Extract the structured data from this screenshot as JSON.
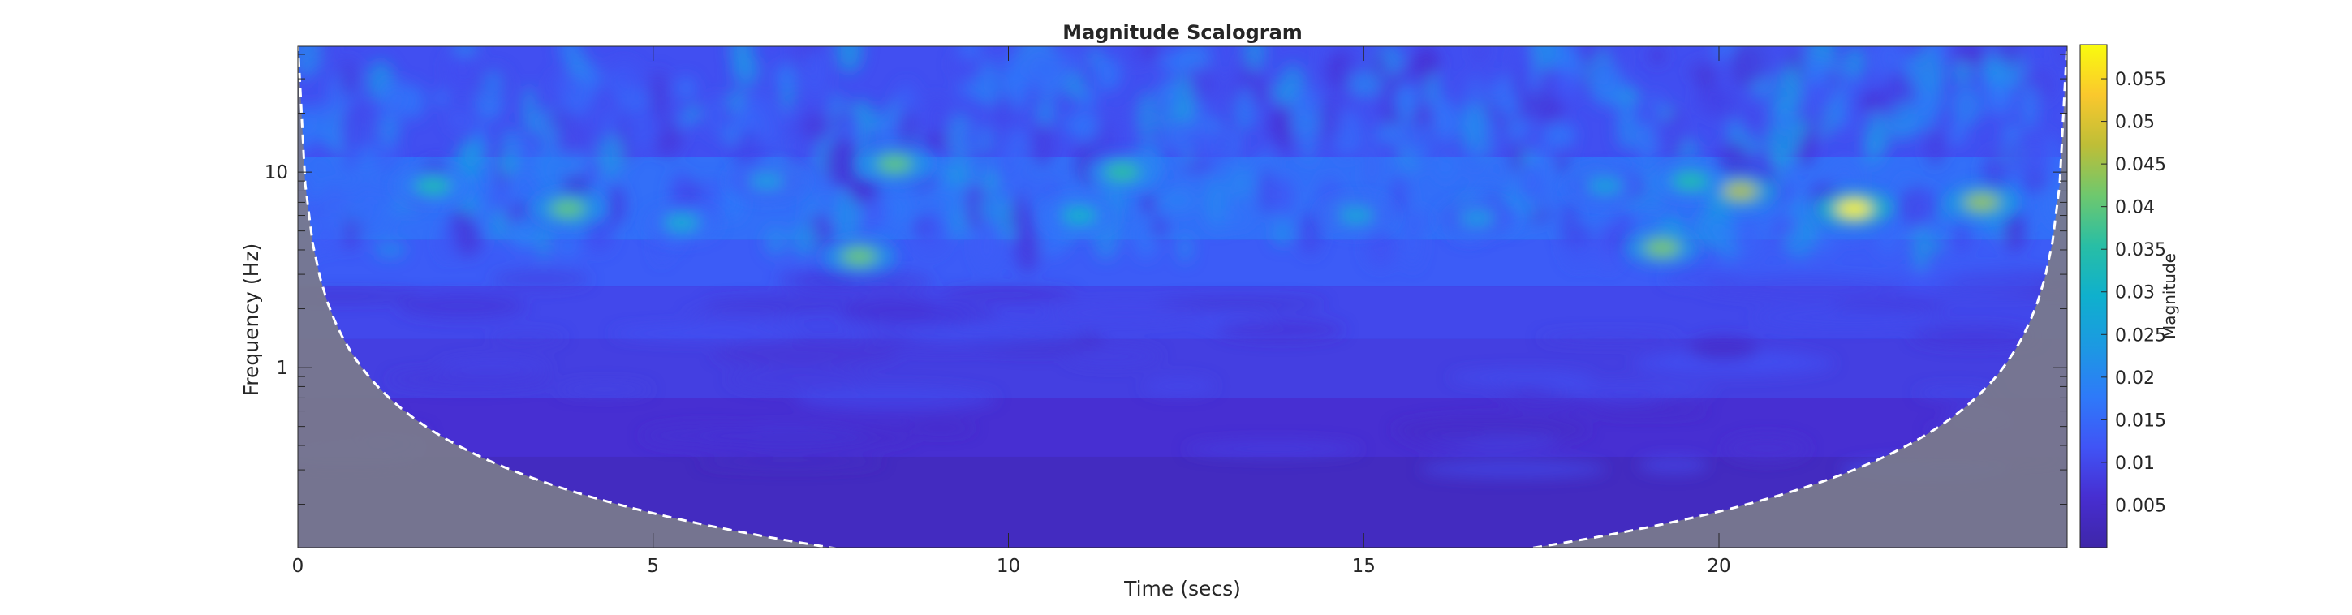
{
  "chart_data": {
    "type": "heatmap",
    "title": "Magnitude Scalogram",
    "xlabel": "Time (secs)",
    "ylabel": "Frequency (Hz)",
    "x_ticks": [
      0,
      5,
      10,
      15,
      20
    ],
    "x_tick_labels": [
      "0",
      "5",
      "10",
      "15",
      "20"
    ],
    "xlim": [
      0,
      24.9
    ],
    "y_scale": "log",
    "y_ticks": [
      1,
      10
    ],
    "y_tick_labels": [
      "1",
      "10"
    ],
    "ylim": [
      0.12,
      44
    ],
    "colorbar": {
      "label": "Magnitude",
      "colormap": "parula",
      "range": [
        0,
        0.059
      ],
      "ticks": [
        0.005,
        0.01,
        0.015,
        0.02,
        0.025,
        0.03,
        0.035,
        0.04,
        0.045,
        0.05,
        0.055
      ],
      "tick_labels": [
        "0.005",
        "0.01",
        "0.015",
        "0.02",
        "0.025",
        "0.03",
        "0.035",
        "0.04",
        "0.045",
        "0.05",
        "0.055"
      ]
    },
    "cone_of_influence": {
      "style": "white dashed line",
      "outside_shading": "gray"
    },
    "hotspots": [
      {
        "t": 21.9,
        "f": 6.5,
        "magnitude": 0.058
      },
      {
        "t": 20.3,
        "f": 8.0,
        "magnitude": 0.046
      },
      {
        "t": 23.7,
        "f": 7.0,
        "magnitude": 0.044
      },
      {
        "t": 19.2,
        "f": 4.1,
        "magnitude": 0.042
      },
      {
        "t": 7.9,
        "f": 3.7,
        "magnitude": 0.041
      },
      {
        "t": 3.8,
        "f": 6.5,
        "magnitude": 0.04
      },
      {
        "t": 8.4,
        "f": 11.0,
        "magnitude": 0.04
      },
      {
        "t": 11.6,
        "f": 10.0,
        "magnitude": 0.036
      },
      {
        "t": 19.6,
        "f": 9.0,
        "magnitude": 0.034
      },
      {
        "t": 1.9,
        "f": 8.5,
        "magnitude": 0.033
      },
      {
        "t": 11.0,
        "f": 6.0,
        "magnitude": 0.03
      },
      {
        "t": 5.4,
        "f": 5.5,
        "magnitude": 0.028
      },
      {
        "t": 14.9,
        "f": 6.0,
        "magnitude": 0.026
      },
      {
        "t": 18.4,
        "f": 8.5,
        "magnitude": 0.025
      },
      {
        "t": 6.6,
        "f": 9.0,
        "magnitude": 0.024
      },
      {
        "t": 16.6,
        "f": 5.8,
        "magnitude": 0.023
      }
    ],
    "colors": {
      "low": "#3d26a8",
      "mid": "#1eb8c0",
      "high": "#f9fb0e",
      "coi_shade": "#7a7a8c",
      "coi_line": "#ffffff"
    }
  }
}
